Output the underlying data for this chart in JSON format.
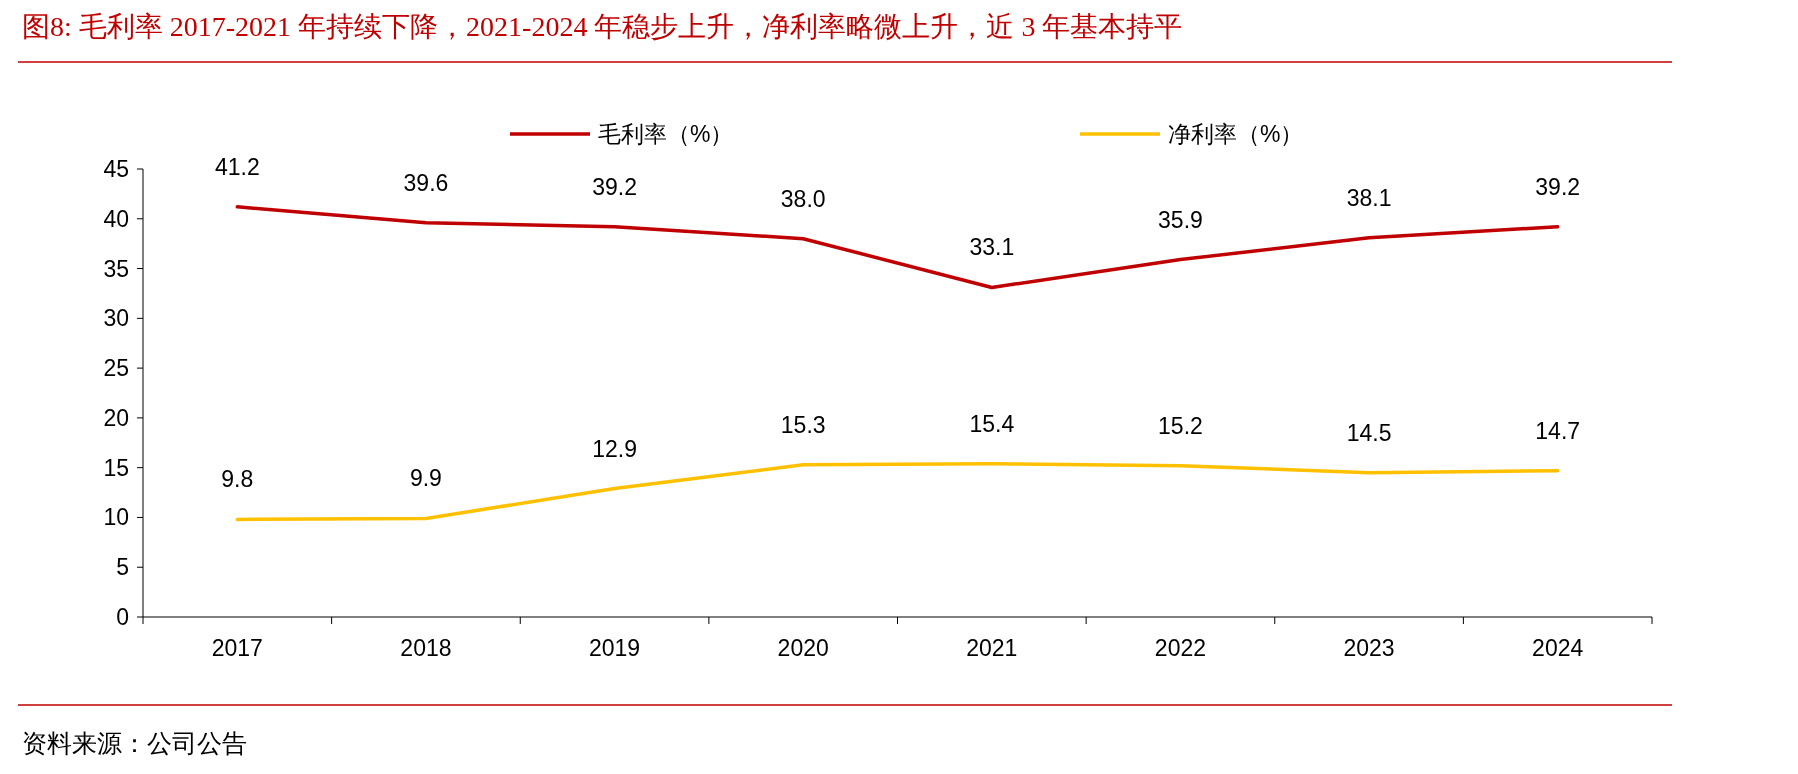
{
  "chart_data": {
    "type": "line",
    "title": "图8:  毛利率 2017-2021 年持续下降，2021-2024 年稳步上升，净利率略微上升，近 3 年基本持平",
    "categories": [
      "2017",
      "2018",
      "2019",
      "2020",
      "2021",
      "2022",
      "2023",
      "2024"
    ],
    "series": [
      {
        "name": "毛利率（%）",
        "color": "#c00000",
        "values": [
          41.2,
          39.6,
          39.2,
          38.0,
          33.1,
          35.9,
          38.1,
          39.2
        ],
        "value_labels": [
          "41.2",
          "39.6",
          "39.2",
          "38.0",
          "33.1",
          "35.9",
          "38.1",
          "39.2"
        ]
      },
      {
        "name": "净利率（%）",
        "color": "#ffc000",
        "values": [
          9.8,
          9.9,
          12.9,
          15.3,
          15.4,
          15.2,
          14.5,
          14.7
        ],
        "value_labels": [
          "9.8",
          "9.9",
          "12.9",
          "15.3",
          "15.4",
          "15.2",
          "14.5",
          "14.7"
        ]
      }
    ],
    "ylim": [
      0,
      45
    ],
    "yticks": [
      0,
      5,
      10,
      15,
      20,
      25,
      30,
      35,
      40,
      45
    ],
    "legend": "top",
    "grid": false,
    "marker": "none",
    "line_style": "solid",
    "annotations": [
      "资料来源：公司公告"
    ]
  }
}
